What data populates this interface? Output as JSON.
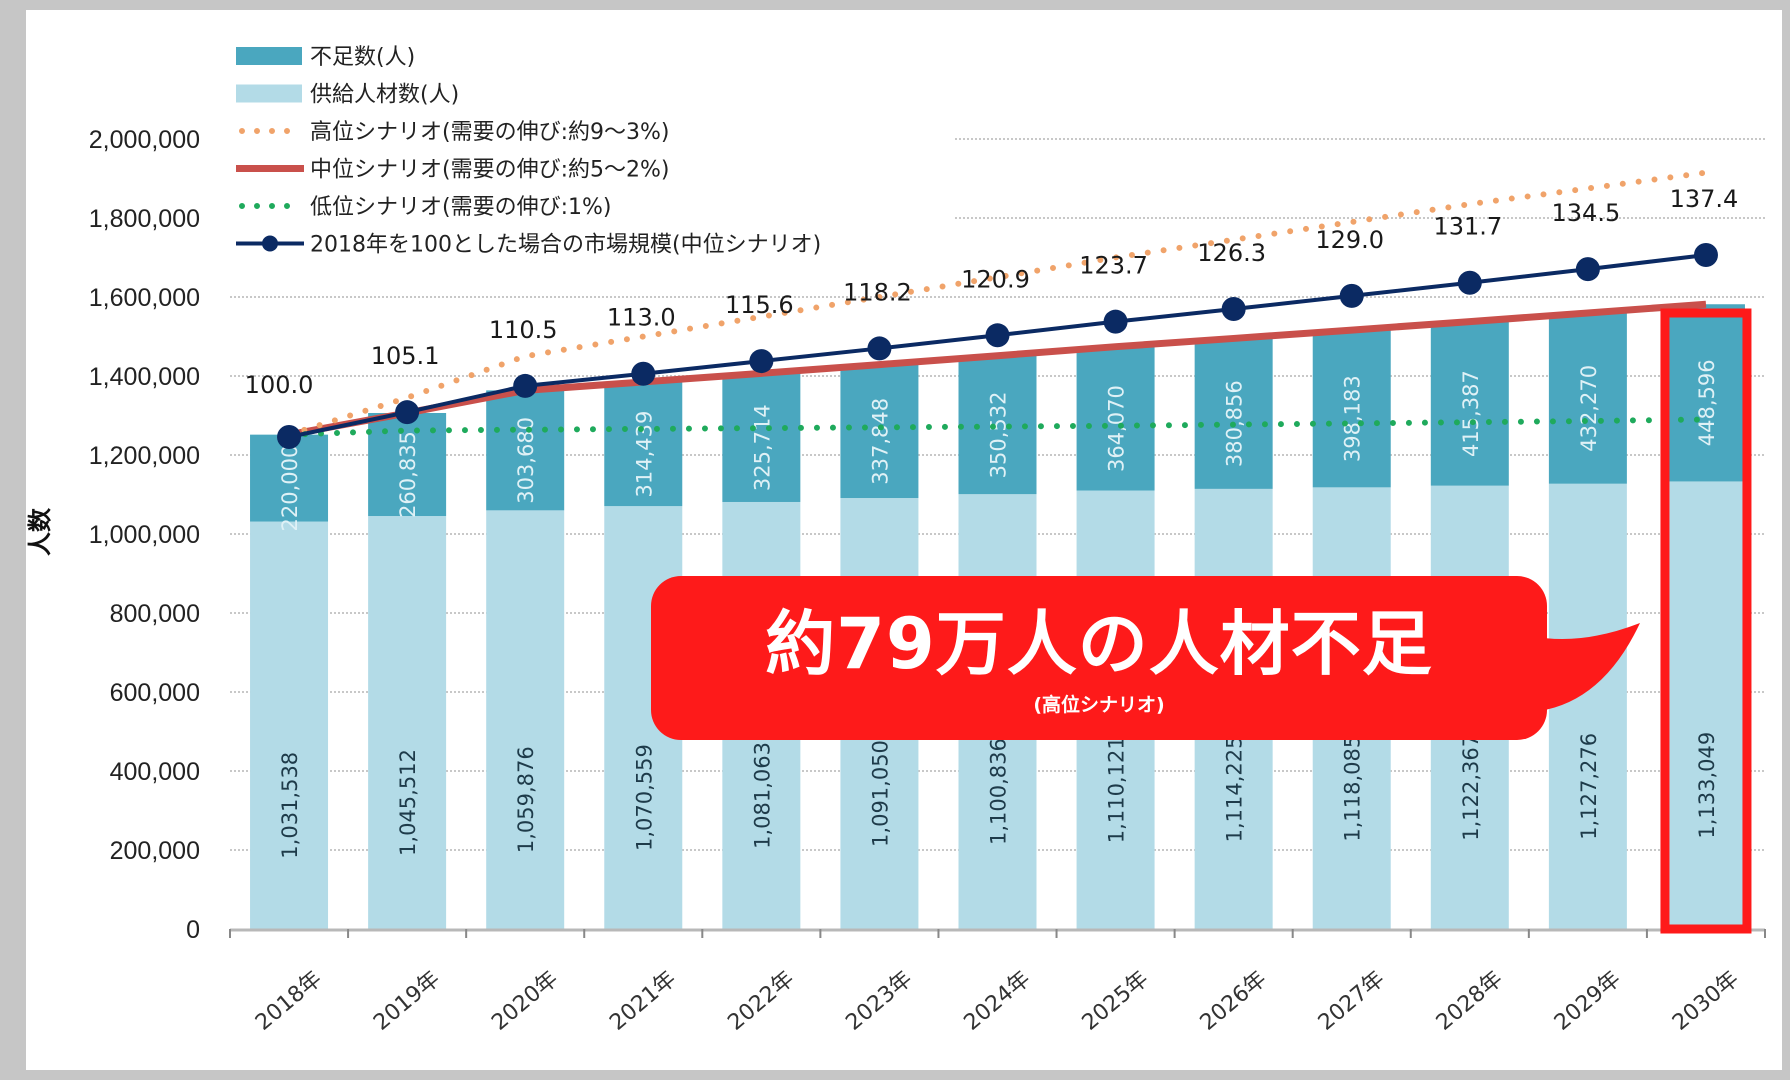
{
  "chart_data": {
    "type": "bar",
    "stacked": true,
    "title": "",
    "xlabel": "",
    "ylabel": "人数",
    "ylim": [
      0,
      2000000
    ],
    "yticks": [
      "0",
      "200,000",
      "400,000",
      "600,000",
      "800,000",
      "1,000,000",
      "1,200,000",
      "1,400,000",
      "1,600,000",
      "1,800,000",
      "2,000,000"
    ],
    "ytick_values": [
      0,
      200000,
      400000,
      600000,
      800000,
      1000000,
      1200000,
      1400000,
      1600000,
      1800000,
      2000000
    ],
    "grid": true,
    "legend_position": "top-left",
    "categories": [
      "2018年",
      "2019年",
      "2020年",
      "2021年",
      "2022年",
      "2023年",
      "2024年",
      "2025年",
      "2026年",
      "2027年",
      "2028年",
      "2029年",
      "2030年"
    ],
    "series": [
      {
        "name": "供給人材数(人)",
        "kind": "bar",
        "color": "#b3dbe7",
        "values": [
          1031538,
          1045512,
          1059876,
          1070559,
          1081063,
          1091050,
          1100836,
          1110121,
          1114225,
          1118085,
          1122367,
          1127276,
          1133049
        ],
        "labels": [
          "1,031,538",
          "1,045,512",
          "1,059,876",
          "1,070,559",
          "1,081,063",
          "1,091,050",
          "1,100,836",
          "1,110,121",
          "1,114,225",
          "1,118,085",
          "1,122,367",
          "1,127,276",
          "1,133,049"
        ]
      },
      {
        "name": "不足数(人)",
        "kind": "bar",
        "color": "#4aa7bf",
        "values": [
          220000,
          260835,
          303680,
          314439,
          325714,
          337848,
          350532,
          364070,
          380856,
          398183,
          415387,
          432270,
          448596
        ],
        "labels": [
          "220,000",
          "260,835",
          "303,680",
          "314,439",
          "325,714",
          "337,848",
          "350,532",
          "364,070",
          "380,856",
          "398,183",
          "415,387",
          "432,270",
          "448,596"
        ]
      },
      {
        "name": "高位シナリオ(需要の伸び:約9〜3%)",
        "kind": "dotted-line",
        "color": "#f0a36a",
        "values": [
          1251538,
          1345000,
          1450000,
          1500000,
          1550000,
          1600000,
          1650000,
          1700000,
          1745000,
          1790000,
          1835000,
          1875000,
          1915000
        ]
      },
      {
        "name": "中位シナリオ(需要の伸び:約5〜2%)",
        "kind": "line",
        "color": "#c9504b",
        "values": [
          1251538,
          1306347,
          1363556,
          1384998,
          1406777,
          1428898,
          1451368,
          1474191,
          1495081,
          1516268,
          1537754,
          1559546,
          1581645
        ]
      },
      {
        "name": "低位シナリオ(需要の伸び:1%)",
        "kind": "dotted-line",
        "color": "#1faa5c",
        "values": [
          1251538,
          1262000,
          1264000,
          1266000,
          1268000,
          1270000,
          1272000,
          1274000,
          1277000,
          1280000,
          1283000,
          1286000,
          1290000
        ]
      },
      {
        "name": "2018年を100とした場合の市場規模(中位シナリオ)",
        "kind": "line-marker",
        "axis": "secondary",
        "color": "#0b2a63",
        "values": [
          100.0,
          105.1,
          110.5,
          113.0,
          115.6,
          118.2,
          120.9,
          123.7,
          126.3,
          129.0,
          131.7,
          134.5,
          137.4
        ],
        "labels": [
          "100.0",
          "105.1",
          "110.5",
          "113.0",
          "115.6",
          "118.2",
          "120.9",
          "123.7",
          "126.3",
          "129.0",
          "131.7",
          "134.5",
          "137.4"
        ]
      }
    ],
    "legend": [
      {
        "label": "不足数(人)",
        "swatch": "bar",
        "color": "#4aa7bf"
      },
      {
        "label": "供給人材数(人)",
        "swatch": "bar",
        "color": "#b3dbe7"
      },
      {
        "label": "高位シナリオ(需要の伸び:約9〜3%)",
        "swatch": "dots",
        "color": "#f0a36a"
      },
      {
        "label": "中位シナリオ(需要の伸び:約5〜2%)",
        "swatch": "line",
        "color": "#c9504b"
      },
      {
        "label": "低位シナリオ(需要の伸び:1%)",
        "swatch": "dots",
        "color": "#1faa5c"
      },
      {
        "label": "2018年を100とした場合の市場規模(中位シナリオ)",
        "swatch": "line-marker",
        "color": "#0b2a63"
      }
    ],
    "highlight": {
      "category": "2030年",
      "color": "#fe1a1a"
    },
    "annotation": {
      "main": "約79万人の人材不足",
      "sub": "(高位シナリオ)",
      "color": "#fe1a1a"
    }
  }
}
